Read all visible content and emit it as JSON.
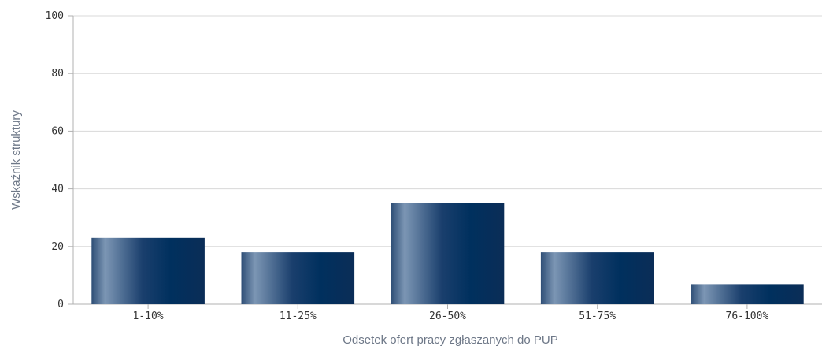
{
  "chart_data": {
    "type": "bar",
    "categories": [
      "1-10%",
      "11-25%",
      "26-50%",
      "51-75%",
      "76-100%"
    ],
    "values": [
      23,
      18,
      35,
      18,
      7
    ],
    "xlabel": "Odsetek ofert pracy zgłaszanych do PUP",
    "ylabel": "Wskaźnik struktury",
    "ylim": [
      0,
      100
    ],
    "yticks": [
      0,
      20,
      40,
      60,
      80,
      100
    ],
    "grid": true,
    "legend": "none",
    "colors": {
      "bar_dark": "#00305e",
      "bar_light": "#7c96b4",
      "grid": "#d8d8d8",
      "axis": "#b0b0b0",
      "label": "#6e7888"
    }
  }
}
